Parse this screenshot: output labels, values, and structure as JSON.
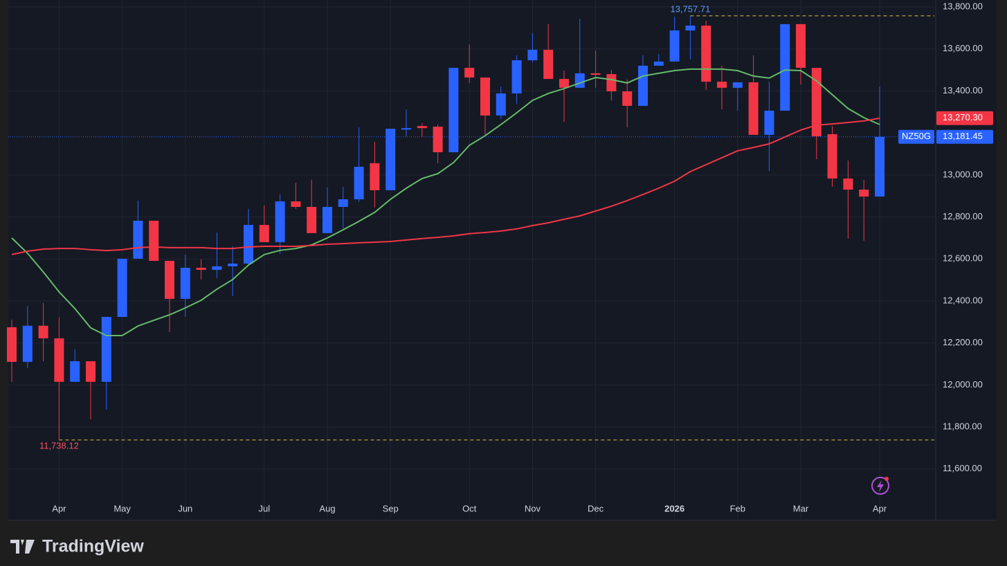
{
  "chart_data": {
    "type": "candlestick",
    "categories": [
      null,
      null,
      null,
      "Apr",
      null,
      null,
      null,
      "May",
      null,
      null,
      null,
      "Jun",
      null,
      null,
      null,
      null,
      "Jul",
      null,
      null,
      null,
      "Aug",
      null,
      null,
      null,
      "Sep",
      null,
      null,
      null,
      null,
      "Oct",
      null,
      null,
      null,
      "Nov",
      null,
      null,
      null,
      "Dec",
      null,
      null,
      null,
      null,
      "2026",
      null,
      null,
      null,
      "Feb",
      null,
      null,
      null,
      "Mar",
      null,
      null,
      null,
      null,
      "Apr"
    ],
    "series": [
      {
        "name": "NZ50G",
        "up_color": "#2962ff",
        "down_color": "#f23645",
        "open": [
          12275,
          12110,
          12282,
          12222,
          12015,
          12113,
          12015,
          12324,
          12601,
          12782,
          12591,
          12410,
          12558,
          12548,
          12565,
          12578,
          12762,
          12680,
          12874,
          12848,
          12723,
          12848,
          12884,
          13056,
          12927,
          13216,
          13233,
          13230,
          13108,
          13510,
          13464,
          13283,
          13388,
          13546,
          13596,
          13457,
          13415,
          13484,
          13480,
          13398,
          13329,
          13520,
          13540,
          13688,
          13711,
          13444,
          13415,
          13441,
          13191,
          13306,
          13718,
          13510,
          13194,
          12983,
          12930,
          12897
        ],
        "high": [
          12311,
          12377,
          12390,
          12321,
          12170,
          12113,
          12324,
          12601,
          12878,
          12782,
          12591,
          12621,
          12598,
          12726,
          12660,
          12838,
          12855,
          12907,
          12963,
          12977,
          12940,
          12944,
          13227,
          13158,
          13220,
          13312,
          13247,
          13240,
          13510,
          13622,
          13464,
          13421,
          13569,
          13675,
          13718,
          13497,
          13744,
          13592,
          13500,
          13454,
          13569,
          13576,
          13754,
          13757.71,
          13734,
          13520,
          13441,
          13569,
          13444,
          13718,
          13718,
          13510,
          13233,
          13069,
          12977,
          13421
        ],
        "low": [
          12015,
          12080,
          12113,
          11738.12,
          12015,
          11837,
          11883,
          12324,
          12601,
          12591,
          12252,
          12324,
          12502,
          12509,
          12423,
          12571,
          12680,
          12624,
          12838,
          12723,
          12723,
          12746,
          12871,
          12845,
          12927,
          13184,
          13181,
          13056,
          13108,
          13438,
          13191,
          13266,
          13339,
          13536,
          13457,
          13253,
          13415,
          13415,
          13355,
          13227,
          13329,
          13520,
          13540,
          13550,
          13405,
          13312,
          13306,
          13191,
          13019,
          13306,
          13431,
          13075,
          12944,
          12697,
          12687,
          12897
        ],
        "close": [
          12110,
          12282,
          12222,
          12015,
          12113,
          12015,
          12324,
          12601,
          12782,
          12591,
          12410,
          12558,
          12548,
          12565,
          12578,
          12762,
          12680,
          12874,
          12848,
          12723,
          12848,
          12884,
          13039,
          12927,
          13220,
          13223,
          13223,
          13108,
          13510,
          13464,
          13283,
          13388,
          13546,
          13596,
          13457,
          13415,
          13484,
          13477,
          13398,
          13329,
          13520,
          13540,
          13688,
          13711,
          13444,
          13415,
          13441,
          13191,
          13306,
          13718,
          13510,
          13184,
          12983,
          12930,
          12897,
          13181.45
        ]
      },
      {
        "type": "line",
        "color": "#66bb6a",
        "values": [
          12700,
          12627,
          12538,
          12443,
          12364,
          12272,
          12235,
          12235,
          12281,
          12308,
          12334,
          12367,
          12403,
          12456,
          12502,
          12571,
          12621,
          12641,
          12650,
          12667,
          12700,
          12739,
          12779,
          12822,
          12884,
          12937,
          12983,
          13006,
          13059,
          13141,
          13187,
          13240,
          13296,
          13355,
          13388,
          13411,
          13438,
          13464,
          13454,
          13438,
          13471,
          13484,
          13497,
          13504,
          13504,
          13504,
          13497,
          13471,
          13461,
          13500,
          13497,
          13448,
          13382,
          13316,
          13273,
          13240
        ]
      },
      {
        "type": "line",
        "color": "#f23645",
        "values": [
          12621,
          12637,
          12647,
          12650,
          12650,
          12644,
          12640,
          12644,
          12654,
          12657,
          12654,
          12654,
          12654,
          12650,
          12650,
          12657,
          12660,
          12660,
          12660,
          12664,
          12670,
          12673,
          12677,
          12680,
          12683,
          12690,
          12697,
          12703,
          12710,
          12720,
          12726,
          12733,
          12743,
          12759,
          12772,
          12789,
          12805,
          12828,
          12851,
          12878,
          12907,
          12937,
          12970,
          13016,
          13049,
          13082,
          13115,
          13131,
          13148,
          13181,
          13214,
          13237,
          13243,
          13250,
          13257,
          13270.3
        ]
      }
    ],
    "ylim": [
      11362,
      13833
    ],
    "yticks": [
      {
        "value": 11600,
        "label": "11,600.00"
      },
      {
        "value": 11800,
        "label": "11,800.00"
      },
      {
        "value": 12000,
        "label": "12,000.00"
      },
      {
        "value": 12200,
        "label": "12,200.00"
      },
      {
        "value": 12400,
        "label": "12,400.00"
      },
      {
        "value": 12600,
        "label": "12,600.00"
      },
      {
        "value": 12800,
        "label": "12,800.00"
      },
      {
        "value": 13000,
        "label": "13,000.00"
      },
      {
        "value": 13400,
        "label": "13,400.00"
      },
      {
        "value": 13600,
        "label": "13,600.00"
      },
      {
        "value": 13800,
        "label": "13,800.00"
      }
    ],
    "grid": true,
    "extremes": [
      {
        "value": 13757.71,
        "label": "13,757.71",
        "color": "#5b9cf6"
      },
      {
        "value": 11738.12,
        "label": "11,738.12",
        "color": "#f7525f"
      }
    ],
    "price_tags": [
      {
        "value": 13270.3,
        "label": "13,270.30",
        "color": "#f23645"
      },
      {
        "value": 13181.45,
        "label": "13,181.45",
        "color": "#2962ff"
      }
    ],
    "brand": "TradingView"
  }
}
